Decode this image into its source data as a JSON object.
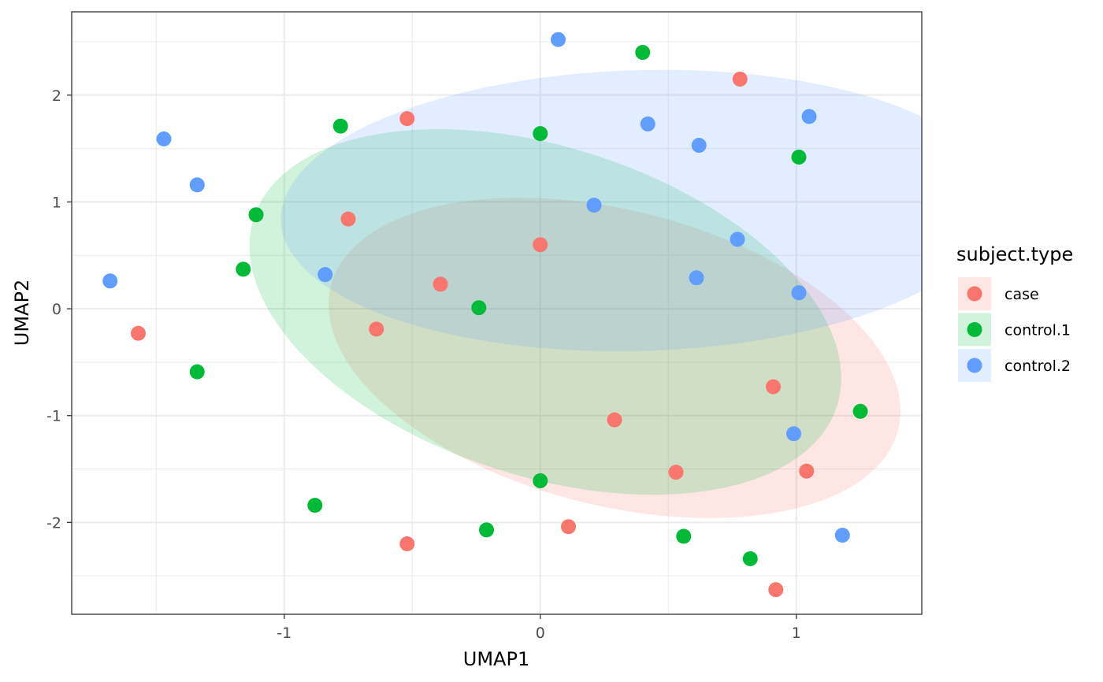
{
  "chart_data": {
    "type": "scatter",
    "title": "",
    "xlabel": "UMAP1",
    "ylabel": "UMAP2",
    "xlim": [
      -1.83,
      1.49
    ],
    "ylim": [
      -2.86,
      2.78
    ],
    "x_ticks": [
      -1,
      0,
      1
    ],
    "y_ticks": [
      -2,
      -1,
      0,
      1,
      2
    ],
    "x_tick_labels": [
      "-1",
      "0",
      "1"
    ],
    "y_tick_labels": [
      "-2",
      "-1",
      "0",
      "1",
      "2"
    ],
    "grid": true,
    "legend": {
      "title": "subject.type",
      "position": "right"
    },
    "series": [
      {
        "name": "case",
        "color": "#F8766D",
        "points": [
          [
            -1.57,
            -0.23
          ],
          [
            -0.75,
            0.84
          ],
          [
            -0.52,
            1.78
          ],
          [
            -0.39,
            0.23
          ],
          [
            -0.64,
            -0.19
          ],
          [
            0.0,
            0.6
          ],
          [
            0.78,
            2.15
          ],
          [
            0.91,
            -0.73
          ],
          [
            0.29,
            -1.04
          ],
          [
            0.53,
            -1.53
          ],
          [
            1.04,
            -1.52
          ],
          [
            0.11,
            -2.04
          ],
          [
            -0.52,
            -2.2
          ],
          [
            0.92,
            -2.63
          ]
        ],
        "ellipse": {
          "cx": 0.29,
          "cy": -0.46,
          "rx": 1.0,
          "ry": 1.58,
          "angle_deg": 24
        }
      },
      {
        "name": "control.1",
        "color": "#00BA38",
        "points": [
          [
            0.4,
            2.4
          ],
          [
            -0.78,
            1.71
          ],
          [
            0.0,
            1.64
          ],
          [
            1.01,
            1.42
          ],
          [
            -1.11,
            0.88
          ],
          [
            -1.16,
            0.37
          ],
          [
            -0.24,
            0.01
          ],
          [
            -1.34,
            -0.59
          ],
          [
            1.25,
            -0.96
          ],
          [
            0.0,
            -1.61
          ],
          [
            -0.88,
            -1.84
          ],
          [
            -0.21,
            -2.07
          ],
          [
            0.56,
            -2.13
          ],
          [
            0.82,
            -2.34
          ]
        ],
        "ellipse": {
          "cx": 0.02,
          "cy": -0.03,
          "rx": 1.03,
          "ry": 1.79,
          "angle_deg": 21
        }
      },
      {
        "name": "control.2",
        "color": "#619CFF",
        "points": [
          [
            0.07,
            2.52
          ],
          [
            -1.47,
            1.59
          ],
          [
            -1.34,
            1.16
          ],
          [
            0.42,
            1.73
          ],
          [
            0.62,
            1.53
          ],
          [
            1.05,
            1.8
          ],
          [
            0.21,
            0.97
          ],
          [
            0.77,
            0.65
          ],
          [
            -1.68,
            0.26
          ],
          [
            -0.84,
            0.32
          ],
          [
            0.61,
            0.29
          ],
          [
            1.01,
            0.15
          ],
          [
            0.99,
            -1.17
          ],
          [
            1.18,
            -2.12
          ]
        ],
        "ellipse": {
          "cx": 0.39,
          "cy": 0.92,
          "rx": 1.3,
          "ry": 1.42,
          "angle_deg": -68
        }
      }
    ]
  }
}
